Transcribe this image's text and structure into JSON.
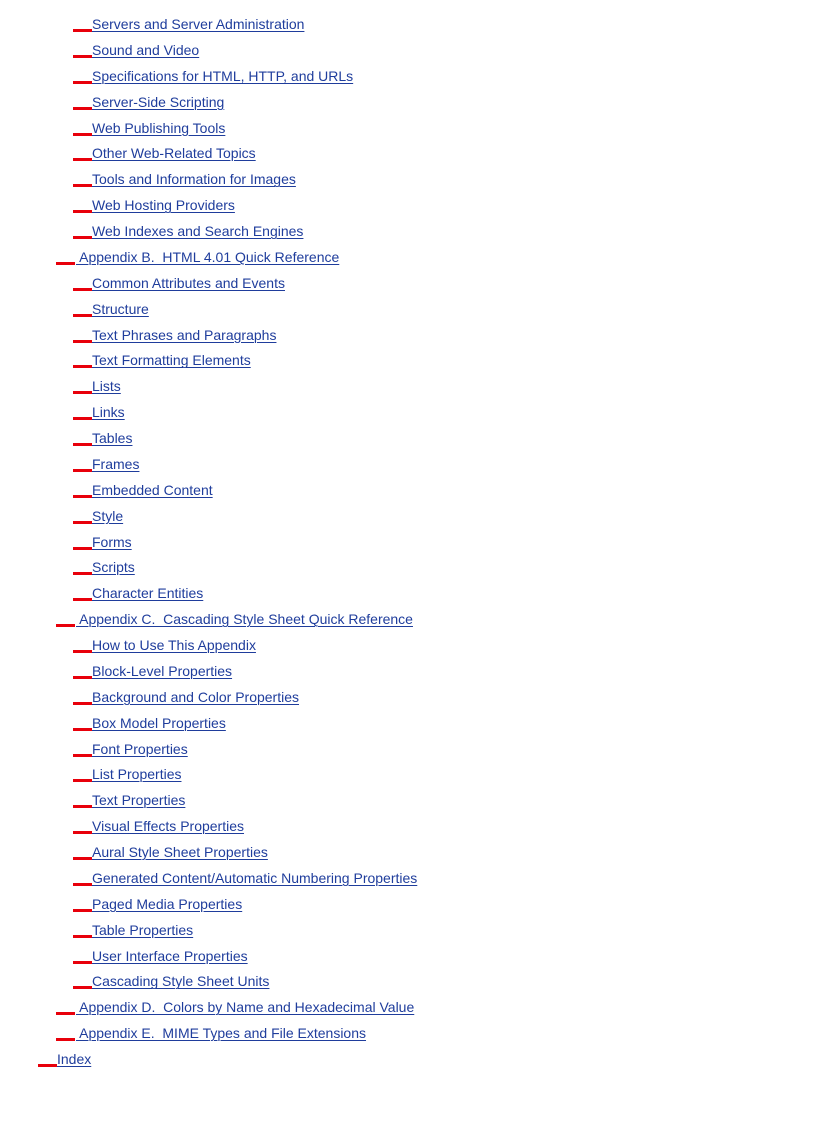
{
  "colors": {
    "link": "#1f3d9c",
    "marker": "#e8000b"
  },
  "toc": [
    {
      "level": 2,
      "label": "Servers and Server Administration"
    },
    {
      "level": 2,
      "label": "Sound and Video"
    },
    {
      "level": 2,
      "label": "Specifications for HTML, HTTP, and URLs"
    },
    {
      "level": 2,
      "label": "Server-Side Scripting"
    },
    {
      "level": 2,
      "label": "Web Publishing Tools"
    },
    {
      "level": 2,
      "label": "Other Web-Related Topics"
    },
    {
      "level": 2,
      "label": "Tools and Information for Images"
    },
    {
      "level": 2,
      "label": "Web Hosting Providers"
    },
    {
      "level": 2,
      "label": "Web Indexes and Search Engines"
    },
    {
      "level": 1,
      "label": " Appendix B.  HTML 4.01 Quick Reference"
    },
    {
      "level": 2,
      "label": "Common Attributes and Events"
    },
    {
      "level": 2,
      "label": "Structure"
    },
    {
      "level": 2,
      "label": "Text Phrases and Paragraphs"
    },
    {
      "level": 2,
      "label": "Text Formatting Elements"
    },
    {
      "level": 2,
      "label": "Lists"
    },
    {
      "level": 2,
      "label": "Links"
    },
    {
      "level": 2,
      "label": "Tables"
    },
    {
      "level": 2,
      "label": "Frames"
    },
    {
      "level": 2,
      "label": "Embedded Content"
    },
    {
      "level": 2,
      "label": "Style"
    },
    {
      "level": 2,
      "label": "Forms"
    },
    {
      "level": 2,
      "label": "Scripts"
    },
    {
      "level": 2,
      "label": "Character Entities"
    },
    {
      "level": 1,
      "label": " Appendix C.  Cascading Style Sheet Quick Reference"
    },
    {
      "level": 2,
      "label": "How to Use This Appendix"
    },
    {
      "level": 2,
      "label": "Block-Level Properties"
    },
    {
      "level": 2,
      "label": "Background and Color Properties"
    },
    {
      "level": 2,
      "label": "Box Model Properties"
    },
    {
      "level": 2,
      "label": "Font Properties"
    },
    {
      "level": 2,
      "label": "List Properties"
    },
    {
      "level": 2,
      "label": "Text Properties"
    },
    {
      "level": 2,
      "label": "Visual Effects Properties"
    },
    {
      "level": 2,
      "label": "Aural Style Sheet Properties"
    },
    {
      "level": 2,
      "label": "Generated Content/Automatic Numbering Properties"
    },
    {
      "level": 2,
      "label": "Paged Media Properties"
    },
    {
      "level": 2,
      "label": "Table Properties"
    },
    {
      "level": 2,
      "label": "User Interface Properties"
    },
    {
      "level": 2,
      "label": "Cascading Style Sheet Units"
    },
    {
      "level": 1,
      "label": " Appendix D.  Colors by Name and Hexadecimal Value"
    },
    {
      "level": 1,
      "label": " Appendix E.  MIME Types and File Extensions"
    },
    {
      "level": 0,
      "label": "Index"
    }
  ]
}
